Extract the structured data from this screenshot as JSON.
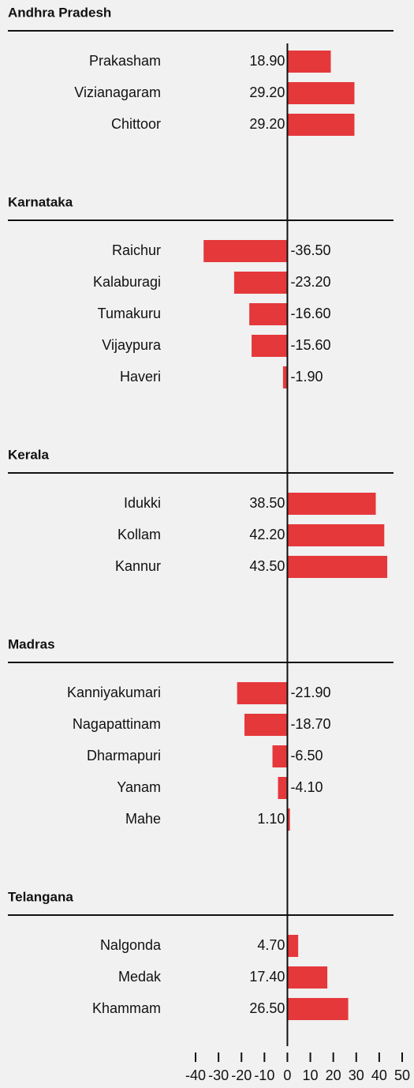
{
  "chart_data": {
    "type": "bar",
    "orientation": "horizontal",
    "color": "#e5383b",
    "xlim": [
      -40,
      50
    ],
    "xticks": [
      -40,
      -30,
      -20,
      -10,
      0,
      10,
      20,
      30,
      40,
      50
    ],
    "groups": [
      {
        "name": "Andhra Pradesh",
        "categories": [
          "Prakasham",
          "Vizianagaram",
          "Chittoor"
        ],
        "values": [
          18.9,
          29.2,
          29.2
        ],
        "value_labels": [
          "18.90",
          "29.20",
          "29.20"
        ]
      },
      {
        "name": "Karnataka",
        "categories": [
          "Raichur",
          "Kalaburagi",
          "Tumakuru",
          "Vijaypura",
          "Haveri"
        ],
        "values": [
          -36.5,
          -23.2,
          -16.6,
          -15.6,
          -1.9
        ],
        "value_labels": [
          "-36.50",
          "-23.20",
          "-16.60",
          "-15.60",
          "-1.90"
        ]
      },
      {
        "name": "Kerala",
        "categories": [
          "Idukki",
          "Kollam",
          "Kannur"
        ],
        "values": [
          38.5,
          42.2,
          43.5
        ],
        "value_labels": [
          "38.50",
          "42.20",
          "43.50"
        ]
      },
      {
        "name": "Madras",
        "categories": [
          "Kanniyakumari",
          "Nagapattinam",
          "Dharmapuri",
          "Yanam",
          "Mahe"
        ],
        "values": [
          -21.9,
          -18.7,
          -6.5,
          -4.1,
          1.1
        ],
        "value_labels": [
          "-21.90",
          "-18.70",
          "-6.50",
          "-4.10",
          "1.10"
        ]
      },
      {
        "name": "Telangana",
        "categories": [
          "Nalgonda",
          "Medak",
          "Khammam"
        ],
        "values": [
          4.7,
          17.4,
          26.5
        ],
        "value_labels": [
          "4.70",
          "17.40",
          "26.50"
        ]
      }
    ]
  }
}
